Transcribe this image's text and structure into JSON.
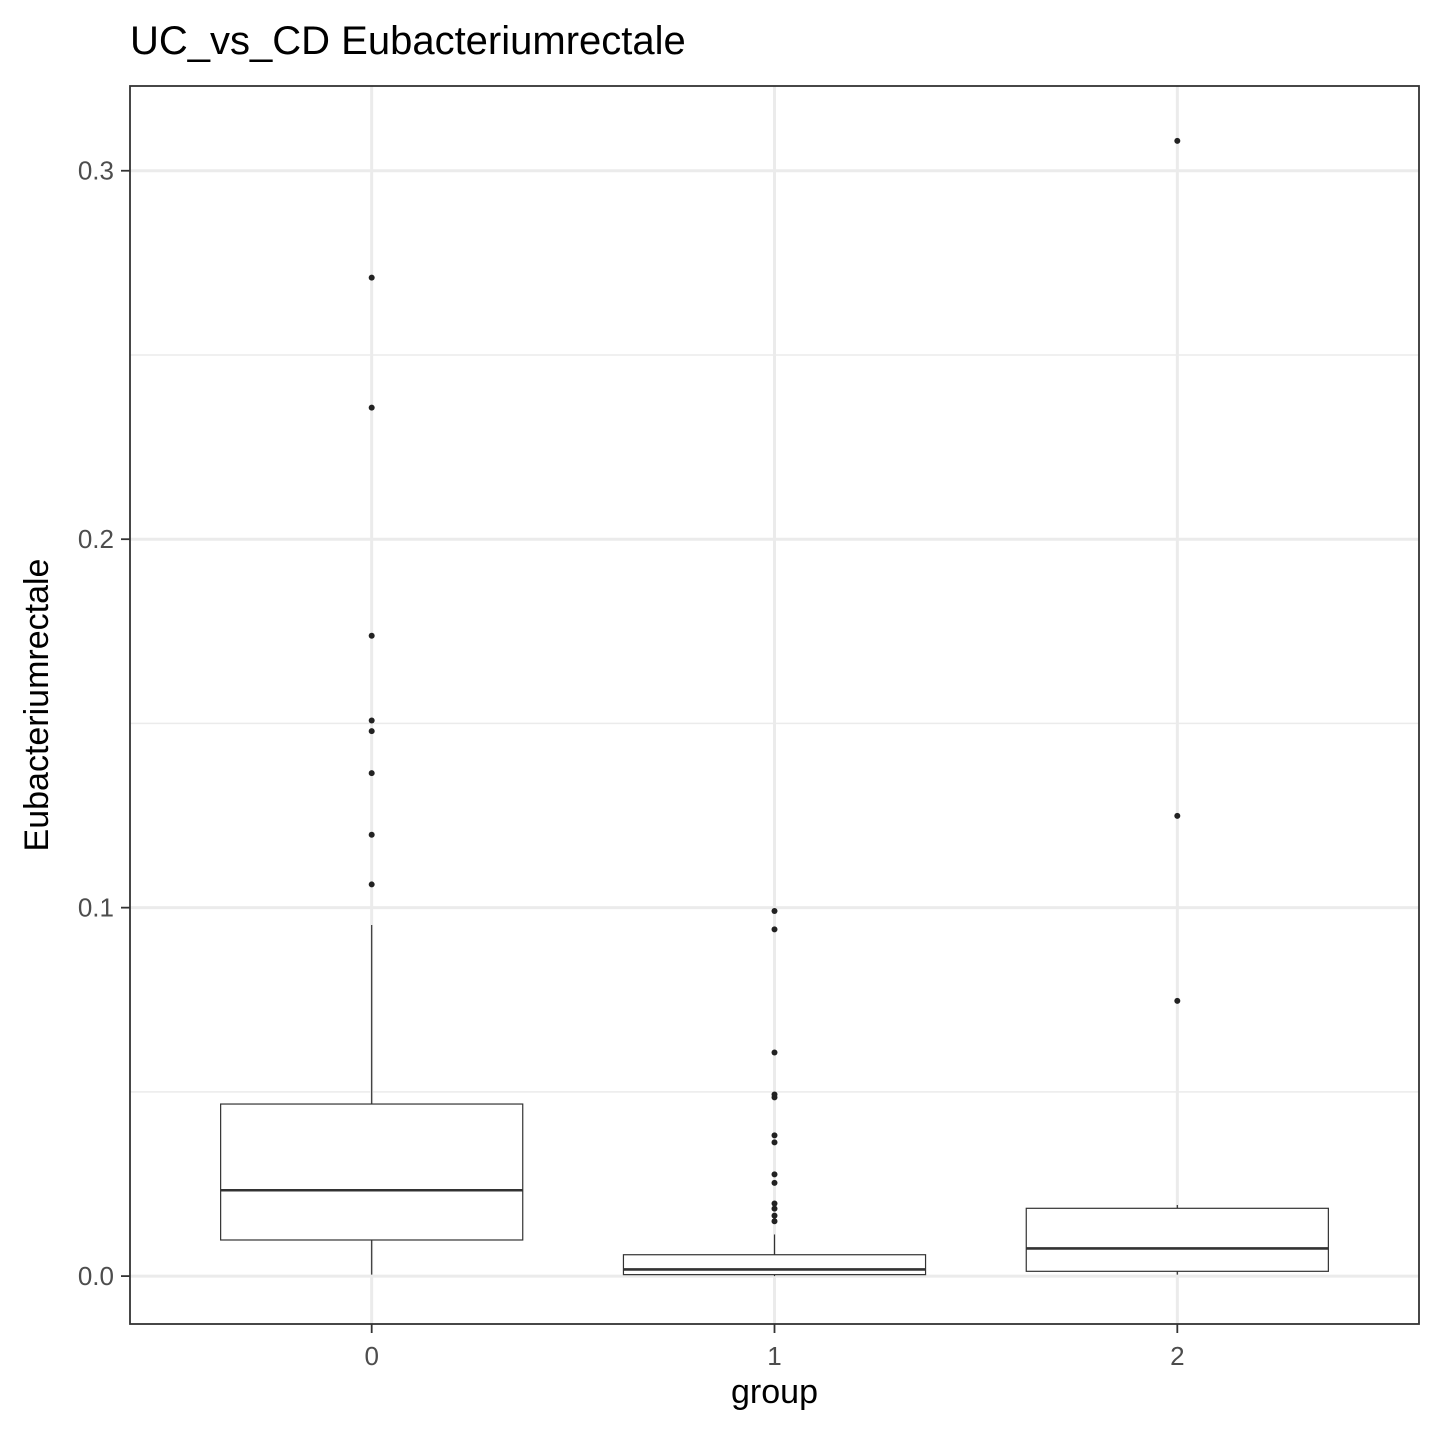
{
  "chart_data": {
    "type": "boxplot",
    "title": "UC_vs_CD Eubacteriumrectale",
    "xlabel": "group",
    "ylabel": "Eubacteriumrectale",
    "categories": [
      "0",
      "1",
      "2"
    ],
    "ylim": [
      -0.013,
      0.323
    ],
    "yticks": [
      {
        "value": 0.0,
        "label": "0.0"
      },
      {
        "value": 0.1,
        "label": "0.1"
      },
      {
        "value": 0.2,
        "label": "0.2"
      },
      {
        "value": 0.3,
        "label": "0.3"
      }
    ],
    "minor_ygrid": [
      0.05,
      0.15,
      0.25
    ],
    "grid": true,
    "boxes": [
      {
        "group": "0",
        "q1": 0.0098,
        "median": 0.0233,
        "q3": 0.0467,
        "whisker_low": 0.0004,
        "whisker_high": 0.0953,
        "outliers": [
          0.271,
          0.2357,
          0.1738,
          0.1508,
          0.1479,
          0.1365,
          0.1198,
          0.1063
        ]
      },
      {
        "group": "1",
        "q1": 0.0004,
        "median": 0.0018,
        "q3": 0.0058,
        "whisker_low": 0.0,
        "whisker_high": 0.0113,
        "outliers": [
          0.0991,
          0.0941,
          0.0607,
          0.0493,
          0.0485,
          0.0382,
          0.0363,
          0.0276,
          0.0253,
          0.0197,
          0.0183,
          0.0164,
          0.0149
        ]
      },
      {
        "group": "2",
        "q1": 0.0013,
        "median": 0.0075,
        "q3": 0.0184,
        "whisker_low": 0.0004,
        "whisker_high": 0.0193,
        "outliers": [
          0.3081,
          0.1249,
          0.0747
        ]
      }
    ]
  }
}
